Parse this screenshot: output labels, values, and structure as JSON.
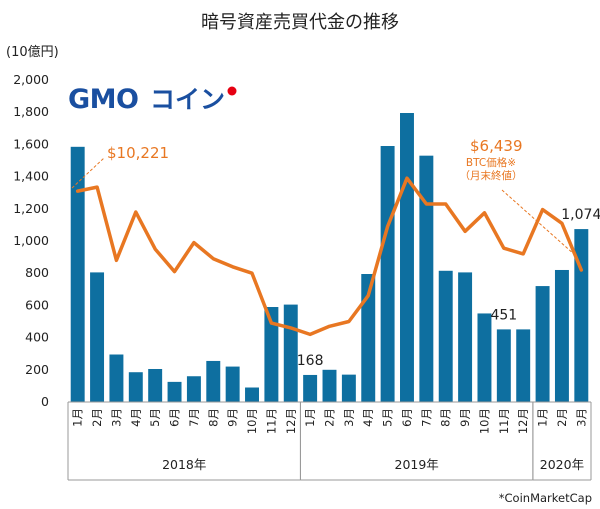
{
  "chart_data": {
    "type": "bar",
    "title": "暗号資産売買代金の推移",
    "unit_label": "(10億円)",
    "ylim": [
      0,
      2000
    ],
    "yticks": [
      "0",
      "200",
      "400",
      "600",
      "800",
      "1,000",
      "1,200",
      "1,400",
      "1,600",
      "1,800",
      "2,000"
    ],
    "categories": [
      "1月",
      "2月",
      "3月",
      "4月",
      "5月",
      "6月",
      "7月",
      "8月",
      "9月",
      "10月",
      "11月",
      "12月",
      "1月",
      "2月",
      "3月",
      "4月",
      "5月",
      "6月",
      "7月",
      "8月",
      "9月",
      "10月",
      "11月",
      "12月",
      "1月",
      "2月",
      "3月"
    ],
    "years": [
      {
        "label": "2018年",
        "start": 0,
        "end": 11
      },
      {
        "label": "2019年",
        "start": 12,
        "end": 23
      },
      {
        "label": "2020年",
        "start": 24,
        "end": 26
      }
    ],
    "series": [
      {
        "values": [
          1585,
          805,
          295,
          185,
          205,
          125,
          160,
          255,
          220,
          90,
          590,
          605,
          168,
          200,
          170,
          795,
          1590,
          1795,
          1530,
          815,
          805,
          550,
          451,
          451,
          720,
          820,
          1074
        ],
        "color": "#0E6FA0"
      },
      {
        "values": [
          1310,
          1335,
          880,
          1180,
          950,
          810,
          990,
          890,
          840,
          800,
          490,
          460,
          420,
          470,
          500,
          660,
          1090,
          1390,
          1230,
          1230,
          1060,
          1175,
          955,
          920,
          1195,
          1110,
          820
        ],
        "color": "#E87722"
      }
    ],
    "bar_labels": [
      {
        "index": 12,
        "text": "168"
      },
      {
        "index": 22,
        "text": "451"
      },
      {
        "index": 26,
        "text": "1,074"
      }
    ],
    "line_annotations": {
      "peak_price": "$10,221",
      "latest_price": "$6,439",
      "price_note_1": "BTC価格※",
      "price_note_2": "（月末終値）"
    },
    "source": "*CoinMarketCap"
  },
  "logo": {
    "part1": "GMO",
    "part2": "コイン"
  },
  "colors": {
    "bar": "#0E6FA0",
    "line": "#E87722",
    "logo": "#1a4fa0"
  }
}
